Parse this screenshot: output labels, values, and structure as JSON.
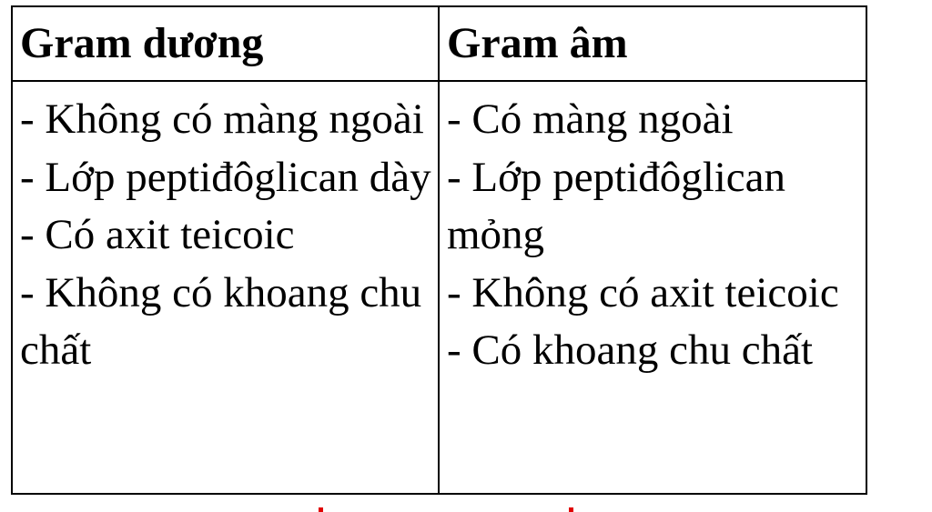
{
  "table": {
    "headers": [
      "Gram dương",
      "Gram âm"
    ],
    "columns": [
      [
        "- Không có màng ngoài",
        "- Lớp peptiđôglican dày",
        "- Có axit teicoic",
        "- Không có khoang chu chất"
      ],
      [
        "- Có màng ngoài",
        "- Lớp peptiđôglican mỏng",
        "- Không có axit teicoic",
        "- Có khoang chu chất"
      ]
    ]
  }
}
